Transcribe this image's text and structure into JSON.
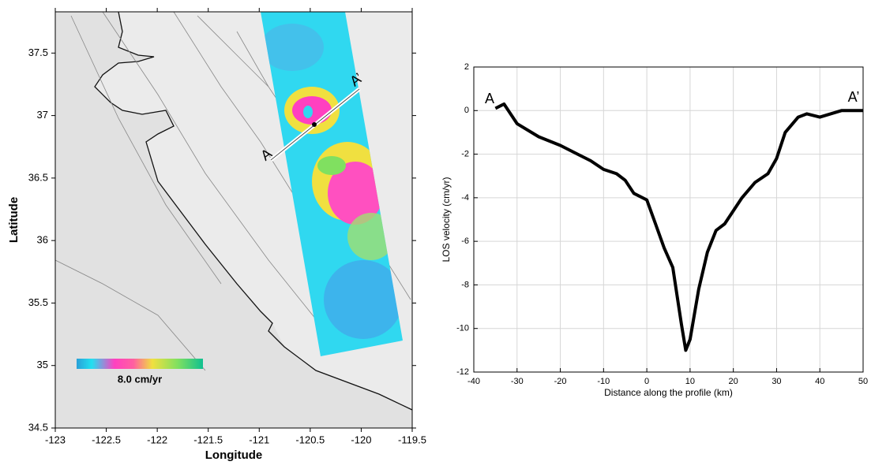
{
  "chart_data": [
    {
      "type": "map",
      "xlabel": "Longitude",
      "ylabel": "Latitude",
      "xlim": [
        -123,
        -119.5
      ],
      "xticks": [
        -123,
        -122.5,
        -122,
        -121.5,
        -121,
        -120.5,
        -120,
        -119.5
      ],
      "ylim": [
        34.5,
        37.83
      ],
      "yticks": [
        34.5,
        35,
        35.5,
        36,
        36.5,
        37,
        37.5
      ],
      "colorbar_label": "8.0 cm/yr",
      "annotations": [
        "A",
        "A’"
      ]
    },
    {
      "type": "line",
      "xlabel": "Distance along the profile (km)",
      "ylabel": "LOS velocity (cm/yr)",
      "xlim": [
        -40,
        50
      ],
      "xticks": [
        -40,
        -30,
        -20,
        -10,
        0,
        10,
        20,
        30,
        40,
        50
      ],
      "ylim": [
        -12,
        2
      ],
      "yticks": [
        -12,
        -10,
        -8,
        -6,
        -4,
        -2,
        0,
        2
      ],
      "grid": true,
      "x": [
        -35,
        -33,
        -32,
        -30,
        -25,
        -20,
        -16,
        -13,
        -10,
        -7,
        -5,
        -3,
        0,
        2,
        4,
        6,
        8,
        9,
        10,
        12,
        14,
        16,
        18,
        20,
        22,
        25,
        28,
        30,
        32,
        35,
        37,
        40,
        45,
        50
      ],
      "series": [
        {
          "color": "#000000",
          "values": [
            0.1,
            0.3,
            0,
            -0.6,
            -1.2,
            -1.6,
            -2.0,
            -2.3,
            -2.7,
            -2.9,
            -3.2,
            -3.8,
            -4.1,
            -5.2,
            -6.3,
            -7.2,
            -9.8,
            -11.0,
            -10.5,
            -8.2,
            -6.5,
            -5.5,
            -5.2,
            -4.6,
            -4.0,
            -3.3,
            -2.9,
            -2.2,
            -1.0,
            -0.3,
            -0.15,
            -0.3,
            0,
            0
          ]
        }
      ],
      "annotations": [
        "A",
        "A’"
      ]
    }
  ]
}
